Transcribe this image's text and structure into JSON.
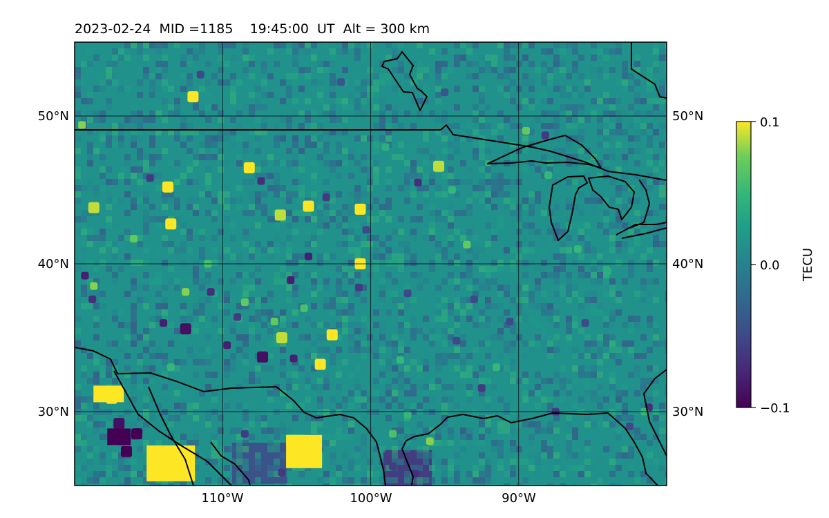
{
  "title": "2023-02-24  MID =1185    19:45:00  UT  Alt = 300 km",
  "map": {
    "lon_range": [
      -120,
      -80
    ],
    "lat_range": [
      25,
      55
    ],
    "lon_ticks": [
      {
        "lon": -110,
        "label": "110°W"
      },
      {
        "lon": -100,
        "label": "100°W"
      },
      {
        "lon": -90,
        "label": "90°W"
      }
    ],
    "lat_ticks": [
      {
        "lat": 50,
        "label": "50°N"
      },
      {
        "lat": 40,
        "label": "40°N"
      },
      {
        "lat": 30,
        "label": "30°N"
      }
    ],
    "gridlines": true,
    "colormap": "viridis",
    "colors": {
      "low": "#440154",
      "mid": "#21918c",
      "high": "#fde725",
      "coastline": "#000000"
    }
  },
  "colorbar": {
    "label": "TECU",
    "min": -0.1,
    "max": 0.1,
    "ticks": [
      {
        "value": 0.1,
        "label": "0.1"
      },
      {
        "value": 0.0,
        "label": "0.0"
      },
      {
        "value": -0.1,
        "label": "−0.1"
      }
    ]
  },
  "chart_data": {
    "type": "heatmap",
    "title": "2023-02-24  MID =1185    19:45:00  UT  Alt = 300 km",
    "xlabel": "",
    "ylabel": "",
    "colorbar_label": "TECU",
    "vmin": -0.1,
    "vmax": 0.1,
    "xlim": [
      -120,
      -80
    ],
    "ylim": [
      25,
      55
    ],
    "background_value": 0.0,
    "hotspots": [
      {
        "lon": -112,
        "lat": 51.3,
        "value": 0.1
      },
      {
        "lon": -119.5,
        "lat": 49.4,
        "value": 0.08
      },
      {
        "lon": -113.5,
        "lat": 42.7,
        "value": 0.1
      },
      {
        "lon": -118.7,
        "lat": 43.8,
        "value": 0.09
      },
      {
        "lon": -113.7,
        "lat": 45.2,
        "value": 0.1
      },
      {
        "lon": -108.2,
        "lat": 46.5,
        "value": 0.1
      },
      {
        "lon": -106.1,
        "lat": 43.3,
        "value": 0.09
      },
      {
        "lon": -104.2,
        "lat": 43.9,
        "value": 0.1
      },
      {
        "lon": -100.7,
        "lat": 43.7,
        "value": 0.1
      },
      {
        "lon": -95.4,
        "lat": 46.6,
        "value": 0.09
      },
      {
        "lon": -100.7,
        "lat": 40.0,
        "value": 0.1
      },
      {
        "lon": -102.6,
        "lat": 35.2,
        "value": 0.1
      },
      {
        "lon": -103.4,
        "lat": 33.2,
        "value": 0.1
      },
      {
        "lon": -106.0,
        "lat": 35.0,
        "value": 0.09
      },
      {
        "lon": -117.5,
        "lat": 30.9,
        "value": 0.1
      },
      {
        "lon": -113.0,
        "lat": 27.0,
        "value": 0.1
      },
      {
        "lon": -114.3,
        "lat": 25.9,
        "value": 0.1
      },
      {
        "lon": -104.0,
        "lat": 28.0,
        "value": 0.1
      },
      {
        "lon": -105.1,
        "lat": 26.6,
        "value": 0.1
      },
      {
        "lon": -98.5,
        "lat": 28.5,
        "value": 0.06
      },
      {
        "lon": -96.0,
        "lat": 28.0,
        "value": 0.08
      },
      {
        "lon": -89.5,
        "lat": 49.0,
        "value": 0.07
      },
      {
        "lon": -88.0,
        "lat": 46.0,
        "value": 0.05
      },
      {
        "lon": -93.5,
        "lat": 41.3,
        "value": 0.07
      },
      {
        "lon": -91.5,
        "lat": 33.0,
        "value": 0.05
      },
      {
        "lon": -97.5,
        "lat": 29.8,
        "value": 0.05
      },
      {
        "lon": -81.5,
        "lat": 30.0,
        "value": 0.05
      },
      {
        "lon": -108.5,
        "lat": 37.4,
        "value": 0.07
      },
      {
        "lon": -112.5,
        "lat": 38.1,
        "value": 0.08
      },
      {
        "lon": -118.7,
        "lat": 38.5,
        "value": 0.08
      },
      {
        "lon": -113.5,
        "lat": 33.0,
        "value": 0.05
      },
      {
        "lon": -106.5,
        "lat": 36.1,
        "value": 0.07
      },
      {
        "lon": -104.5,
        "lat": 37.0,
        "value": 0.06
      },
      {
        "lon": -99.0,
        "lat": 47.9,
        "value": 0.04
      },
      {
        "lon": -94.5,
        "lat": 45.0,
        "value": 0.05
      },
      {
        "lon": -86.0,
        "lat": 41.0,
        "value": 0.05
      },
      {
        "lon": -84.0,
        "lat": 39.5,
        "value": 0.04
      },
      {
        "lon": -98.0,
        "lat": 33.5,
        "value": 0.05
      },
      {
        "lon": -111.0,
        "lat": 40.0,
        "value": 0.06
      },
      {
        "lon": -116.0,
        "lat": 41.7,
        "value": 0.07
      }
    ],
    "coldspots": [
      {
        "lon": -115.8,
        "lat": 28.5,
        "value": -0.1
      },
      {
        "lon": -116.5,
        "lat": 27.3,
        "value": -0.1
      },
      {
        "lon": -117.0,
        "lat": 29.2,
        "value": -0.09
      },
      {
        "lon": -107.3,
        "lat": 33.7,
        "value": -0.09
      },
      {
        "lon": -105.2,
        "lat": 33.6,
        "value": -0.08
      },
      {
        "lon": -97.0,
        "lat": 25.8,
        "value": -0.07
      },
      {
        "lon": -98.5,
        "lat": 26.3,
        "value": -0.06
      },
      {
        "lon": -114.0,
        "lat": 36.0,
        "value": -0.08
      },
      {
        "lon": -112.5,
        "lat": 35.6,
        "value": -0.09
      },
      {
        "lon": -109.7,
        "lat": 34.5,
        "value": -0.08
      },
      {
        "lon": -108.5,
        "lat": 28.5,
        "value": -0.06
      },
      {
        "lon": -106.0,
        "lat": 25.9,
        "value": -0.06
      },
      {
        "lon": -103.0,
        "lat": 44.5,
        "value": -0.06
      },
      {
        "lon": -107.4,
        "lat": 45.6,
        "value": -0.07
      },
      {
        "lon": -114.9,
        "lat": 45.8,
        "value": -0.06
      },
      {
        "lon": -104.2,
        "lat": 40.5,
        "value": -0.08
      },
      {
        "lon": -105.4,
        "lat": 38.9,
        "value": -0.08
      },
      {
        "lon": -96.8,
        "lat": 45.5,
        "value": -0.07
      },
      {
        "lon": -88.2,
        "lat": 48.7,
        "value": -0.06
      },
      {
        "lon": -85.5,
        "lat": 36.0,
        "value": -0.05
      },
      {
        "lon": -87.5,
        "lat": 30.0,
        "value": -0.06
      },
      {
        "lon": -82.5,
        "lat": 29.0,
        "value": -0.05
      },
      {
        "lon": -81.2,
        "lat": 30.3,
        "value": -0.07
      },
      {
        "lon": -94.2,
        "lat": 34.8,
        "value": -0.05
      },
      {
        "lon": -97.5,
        "lat": 38.0,
        "value": -0.05
      },
      {
        "lon": -119.3,
        "lat": 39.2,
        "value": -0.08
      },
      {
        "lon": -118.8,
        "lat": 37.6,
        "value": -0.07
      },
      {
        "lon": -110.8,
        "lat": 38.1,
        "value": -0.07
      },
      {
        "lon": -109.0,
        "lat": 36.4,
        "value": -0.06
      },
      {
        "lon": -100.3,
        "lat": 42.3,
        "value": -0.05
      },
      {
        "lon": -100.8,
        "lat": 38.4,
        "value": -0.06
      },
      {
        "lon": -93.0,
        "lat": 37.6,
        "value": -0.05
      },
      {
        "lon": -90.6,
        "lat": 36.1,
        "value": -0.05
      },
      {
        "lon": -92.5,
        "lat": 31.6,
        "value": -0.06
      },
      {
        "lon": -111.5,
        "lat": 52.8,
        "value": -0.05
      },
      {
        "lon": -102.0,
        "lat": 52.3,
        "value": -0.04
      },
      {
        "lon": -95.0,
        "lat": 51.6,
        "value": -0.04
      }
    ]
  }
}
